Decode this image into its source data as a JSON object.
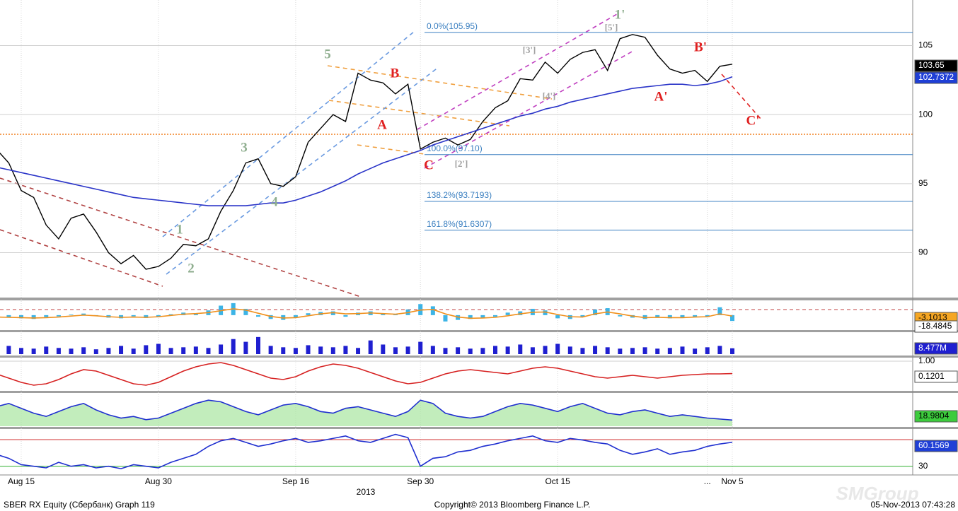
{
  "chart_data": [
    {
      "type": "line",
      "categories": [
        null,
        null,
        "Aug 15",
        null,
        null,
        null,
        null,
        null,
        null,
        null,
        null,
        null,
        null,
        "Aug 30",
        null,
        null,
        null,
        null,
        null,
        null,
        null,
        null,
        null,
        null,
        "Sep 16",
        null,
        null,
        null,
        null,
        null,
        null,
        null,
        null,
        null,
        "Sep 30",
        null,
        null,
        null,
        null,
        null,
        null,
        null,
        null,
        null,
        null,
        "Oct 15",
        null,
        null,
        null,
        null,
        null,
        null,
        null,
        null,
        null,
        null,
        null,
        "...",
        null,
        "Nov 5"
      ],
      "x_year_label": "2013",
      "series": [
        {
          "color": "#000000",
          "values": [
            97.5,
            96.5,
            94.5,
            94,
            92,
            91,
            92.5,
            92.8,
            91.5,
            90,
            89.2,
            89.8,
            88.8,
            89,
            89.6,
            90.6,
            90.5,
            91,
            93,
            94.5,
            96.5,
            96.8,
            95,
            94.8,
            95.5,
            98,
            99,
            100,
            99.5,
            103,
            102.5,
            102.3,
            101.5,
            102.2,
            97.5,
            98,
            98.3,
            97.8,
            98.2,
            99.5,
            100.5,
            101,
            102.6,
            102.5,
            103.8,
            103,
            104,
            104.5,
            104.7,
            103.2,
            105.5,
            105.8,
            105.6,
            104.3,
            103.3,
            103,
            103.2,
            102.4,
            103.5,
            103.65
          ]
        },
        {
          "color": "#2a34c8",
          "values": [
            96.2,
            96,
            95.8,
            95.6,
            95.4,
            95.2,
            95,
            94.8,
            94.6,
            94.4,
            94.2,
            94,
            93.9,
            93.8,
            93.7,
            93.6,
            93.5,
            93.4,
            93.4,
            93.4,
            93.4,
            93.5,
            93.6,
            93.6,
            93.8,
            94.1,
            94.4,
            94.8,
            95.2,
            95.7,
            96.1,
            96.5,
            96.8,
            97.1,
            97.4,
            97.8,
            98.1,
            98.4,
            98.7,
            99,
            99.3,
            99.6,
            99.9,
            100.1,
            100.4,
            100.6,
            100.9,
            101.1,
            101.3,
            101.5,
            101.7,
            101.9,
            102,
            102.1,
            102.2,
            102.2,
            102.1,
            102.2,
            102.4,
            102.7372
          ]
        }
      ],
      "ylim": [
        86.8,
        108.3
      ],
      "yticks": [
        90,
        95,
        100,
        105
      ],
      "grid": true,
      "levels": [
        {
          "value": 105.95,
          "label": "0.0%(105.95)"
        },
        {
          "value": 97.1,
          "label": "100.0%(97.10)"
        },
        {
          "value": 93.7193,
          "label": "138.2%(93.7193)"
        },
        {
          "value": 91.6307,
          "label": "161.8%(91.6307)"
        }
      ],
      "annotations": [
        {
          "text": "5",
          "color": "#8fae8f"
        },
        {
          "text": "3",
          "color": "#8fae8f"
        },
        {
          "text": "4",
          "color": "#8fae8f"
        },
        {
          "text": "1",
          "color": "#8fae8f"
        },
        {
          "text": "2",
          "color": "#8fae8f"
        },
        {
          "text": "A",
          "color": "#e02020"
        },
        {
          "text": "B",
          "color": "#e02020"
        },
        {
          "text": "C",
          "color": "#e02020"
        },
        {
          "text": "1'",
          "color": "#8fae8f"
        },
        {
          "text": "[5']",
          "color": "#a0a0a0"
        },
        {
          "text": "[3']",
          "color": "#a0a0a0"
        },
        {
          "text": "[4']",
          "color": "#a0a0a0"
        },
        {
          "text": "[2']",
          "color": "#a0a0a0"
        },
        {
          "text": "B'",
          "color": "#e02020"
        },
        {
          "text": "A'",
          "color": "#e02020"
        },
        {
          "text": "C'",
          "color": "#e02020"
        }
      ]
    },
    {
      "type": "bar",
      "series": [
        {
          "type": "bar",
          "color": "#3cb4e6",
          "values": [
            -5,
            -8,
            -10,
            -12,
            -6,
            -4,
            2,
            5,
            -3,
            -8,
            -10,
            -4,
            -9,
            -6,
            3,
            8,
            6,
            15,
            30,
            38,
            20,
            -5,
            -12,
            -15,
            -8,
            6,
            10,
            12,
            -5,
            8,
            12,
            5,
            2,
            18,
            35,
            28,
            -20,
            -15,
            -12,
            -8,
            -5,
            8,
            12,
            20,
            15,
            -10,
            -12,
            -6,
            18,
            22,
            -4,
            -8,
            -12,
            -6,
            -10,
            -8,
            -5,
            -6,
            25,
            -18.4845
          ]
        },
        {
          "type": "line",
          "color": "#f0901c",
          "values": [
            -6,
            -7,
            -8,
            -9,
            -8,
            -6,
            -3,
            0,
            -2,
            -5,
            -7,
            -6,
            -7,
            -5,
            -1,
            3,
            5,
            8,
            14,
            20,
            16,
            6,
            -4,
            -9,
            -8,
            -2,
            4,
            8,
            4,
            5,
            7,
            5,
            3,
            8,
            16,
            18,
            4,
            -6,
            -10,
            -9,
            -7,
            -2,
            4,
            9,
            10,
            2,
            -5,
            -6,
            4,
            10,
            4,
            -3,
            -8,
            -7,
            -8,
            -8,
            -6,
            -5,
            4,
            -3.1013
          ]
        }
      ],
      "ylim": [
        -45,
        40
      ]
    },
    {
      "type": "bar",
      "series": [
        {
          "color": "#1f1fd0",
          "values": [
            10,
            12,
            9,
            8,
            11,
            9,
            8,
            10,
            7,
            9,
            12,
            8,
            13,
            15,
            9,
            10,
            11,
            9,
            14,
            22,
            18,
            25,
            12,
            10,
            9,
            13,
            11,
            10,
            12,
            9,
            20,
            14,
            10,
            11,
            18,
            12,
            9,
            10,
            8,
            9,
            12,
            11,
            14,
            10,
            12,
            15,
            11,
            9,
            12,
            10,
            8,
            9,
            10,
            8,
            9,
            11,
            8,
            10,
            12,
            8.477
          ],
          "value_labels": [
            null,
            null,
            null,
            null,
            null,
            null,
            null,
            null,
            null,
            null,
            null,
            null,
            null,
            null,
            null,
            null,
            null,
            null,
            null,
            null,
            null,
            null,
            null,
            null,
            null,
            null,
            null,
            null,
            null,
            null,
            null,
            null,
            null,
            null,
            null,
            null,
            null,
            null,
            null,
            null,
            null,
            null,
            null,
            null,
            null,
            null,
            null,
            null,
            null,
            null,
            null,
            null,
            null,
            null,
            null,
            null,
            null,
            null,
            null,
            "8.477M"
          ]
        }
      ],
      "ylim": [
        0,
        30
      ]
    },
    {
      "type": "line",
      "series": [
        {
          "color": "#d62020",
          "values": [
            0.1,
            -0.2,
            -0.5,
            -0.7,
            -0.6,
            -0.3,
            0.1,
            0.4,
            0.3,
            0,
            -0.3,
            -0.6,
            -0.7,
            -0.5,
            -0.1,
            0.3,
            0.6,
            0.8,
            0.9,
            0.7,
            0.4,
            0.1,
            -0.2,
            -0.3,
            -0.1,
            0.3,
            0.6,
            0.8,
            0.7,
            0.5,
            0.2,
            -0.1,
            -0.4,
            -0.6,
            -0.5,
            -0.2,
            0.1,
            0.3,
            0.4,
            0.3,
            0.2,
            0.1,
            0.3,
            0.5,
            0.6,
            0.5,
            0.3,
            0.1,
            -0.1,
            -0.2,
            -0.1,
            0,
            -0.1,
            -0.2,
            -0.1,
            0,
            0.05,
            0.1,
            0.1,
            0.1201
          ]
        }
      ],
      "ylim": [
        -1,
        1.2
      ],
      "yticks": [
        {
          "value": 1,
          "label": "1.00"
        }
      ]
    },
    {
      "type": "area",
      "series": [
        {
          "color": "#1f2fd0",
          "values": [
            60,
            70,
            55,
            40,
            30,
            45,
            60,
            70,
            50,
            35,
            25,
            30,
            20,
            25,
            40,
            55,
            70,
            80,
            75,
            60,
            45,
            35,
            50,
            65,
            70,
            60,
            45,
            40,
            55,
            60,
            50,
            40,
            30,
            45,
            80,
            70,
            40,
            30,
            25,
            30,
            45,
            60,
            70,
            65,
            55,
            45,
            60,
            70,
            55,
            40,
            35,
            45,
            50,
            40,
            30,
            35,
            30,
            25,
            22,
            18.9804
          ]
        }
      ],
      "ylim": [
        0,
        100
      ]
    },
    {
      "type": "line",
      "series": [
        {
          "color": "#1f2fd0",
          "values": [
            45,
            40,
            32,
            30,
            28,
            35,
            30,
            32,
            28,
            30,
            27,
            32,
            30,
            28,
            35,
            40,
            45,
            55,
            62,
            65,
            60,
            55,
            58,
            62,
            65,
            60,
            62,
            65,
            68,
            62,
            60,
            65,
            70,
            66,
            30,
            40,
            42,
            48,
            50,
            55,
            58,
            62,
            65,
            68,
            62,
            60,
            65,
            63,
            60,
            58,
            50,
            45,
            48,
            52,
            45,
            48,
            50,
            55,
            58,
            60.1569
          ]
        }
      ],
      "ylim": [
        20,
        75
      ],
      "yticks": [
        30
      ]
    }
  ],
  "footer": {
    "left": "SBER RX Equity (Сбербанк) Graph 119",
    "center": "Copyright© 2013 Bloomberg Finance L.P.",
    "right": "05-Nov-2013 07:43:28",
    "watermark": "SMGroup"
  }
}
